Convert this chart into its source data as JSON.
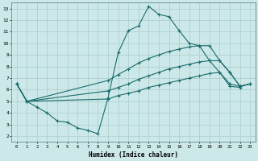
{
  "xlabel": "Humidex (Indice chaleur)",
  "xlim": [
    -0.5,
    23.5
  ],
  "ylim": [
    1.5,
    13.5
  ],
  "yticks": [
    2,
    3,
    4,
    5,
    6,
    7,
    8,
    9,
    10,
    11,
    12,
    13
  ],
  "xticks": [
    0,
    1,
    2,
    3,
    4,
    5,
    6,
    7,
    8,
    9,
    10,
    11,
    12,
    13,
    14,
    15,
    16,
    17,
    18,
    19,
    20,
    21,
    22,
    23
  ],
  "background_color": "#cce8e8",
  "grid_color": "#aacccc",
  "line_color": "#1a6b6b",
  "line1_x": [
    0,
    1,
    2,
    3,
    4,
    5,
    6,
    7,
    8,
    9,
    10,
    11,
    12,
    13,
    14,
    15,
    16,
    17,
    18,
    19,
    20,
    21,
    22
  ],
  "line1_y": [
    6.5,
    5.0,
    4.5,
    4.0,
    3.3,
    3.2,
    2.7,
    2.5,
    2.2,
    5.3,
    9.2,
    11.1,
    11.5,
    13.2,
    12.5,
    12.3,
    11.1,
    10.0,
    9.8,
    8.5,
    7.5,
    6.3,
    6.2
  ],
  "line2_x": [
    0,
    1,
    9,
    10,
    11,
    12,
    13,
    14,
    15,
    16,
    17,
    18,
    19,
    20,
    21,
    22,
    23
  ],
  "line2_y": [
    6.5,
    5.0,
    6.8,
    7.3,
    7.8,
    8.3,
    8.7,
    9.0,
    9.3,
    9.5,
    9.7,
    9.8,
    9.8,
    8.5,
    7.5,
    6.3,
    6.5
  ],
  "line3_x": [
    0,
    1,
    9,
    10,
    11,
    12,
    13,
    14,
    15,
    16,
    17,
    18,
    19,
    20,
    21,
    22,
    23
  ],
  "line3_y": [
    6.5,
    5.0,
    5.9,
    6.2,
    6.5,
    6.9,
    7.2,
    7.5,
    7.8,
    8.0,
    8.2,
    8.4,
    8.5,
    8.5,
    7.5,
    6.3,
    6.5
  ],
  "line4_x": [
    0,
    1,
    9,
    10,
    11,
    12,
    13,
    14,
    15,
    16,
    17,
    18,
    19,
    20,
    21,
    22,
    23
  ],
  "line4_y": [
    6.5,
    5.0,
    5.2,
    5.5,
    5.7,
    5.9,
    6.2,
    6.4,
    6.6,
    6.8,
    7.0,
    7.2,
    7.4,
    7.5,
    6.5,
    6.3,
    6.5
  ]
}
